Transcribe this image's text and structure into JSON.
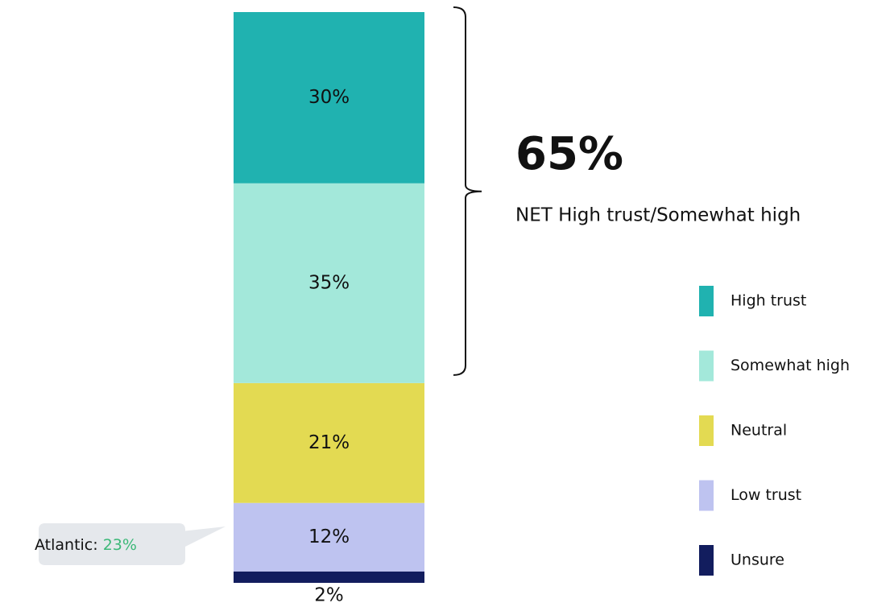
{
  "chart_data": {
    "type": "bar",
    "stacked": true,
    "categories": [
      null
    ],
    "ylim": [
      0,
      100
    ],
    "series": [
      {
        "name": "High trust",
        "color": "#20b2b0",
        "values": [
          30
        ],
        "value_labels": [
          "30%"
        ]
      },
      {
        "name": "Somewhat high",
        "color": "#a3e8da",
        "values": [
          35
        ],
        "value_labels": [
          "35%"
        ]
      },
      {
        "name": "Neutral",
        "color": "#e3da52",
        "values": [
          21
        ],
        "value_labels": [
          "21%"
        ]
      },
      {
        "name": "Low trust",
        "color": "#bec3f0",
        "values": [
          12
        ],
        "value_labels": [
          "12%"
        ]
      },
      {
        "name": "Unsure",
        "color": "#121d5e",
        "values": [
          2
        ],
        "value_labels": [
          "2%"
        ]
      }
    ],
    "net": {
      "value": 65,
      "label": "65%",
      "text": "NET High trust/Somewhat high"
    },
    "callout": {
      "label": "Atlantic:",
      "value": 23,
      "value_label": "23%",
      "value_color": "#3cb878"
    },
    "legend": "right"
  }
}
